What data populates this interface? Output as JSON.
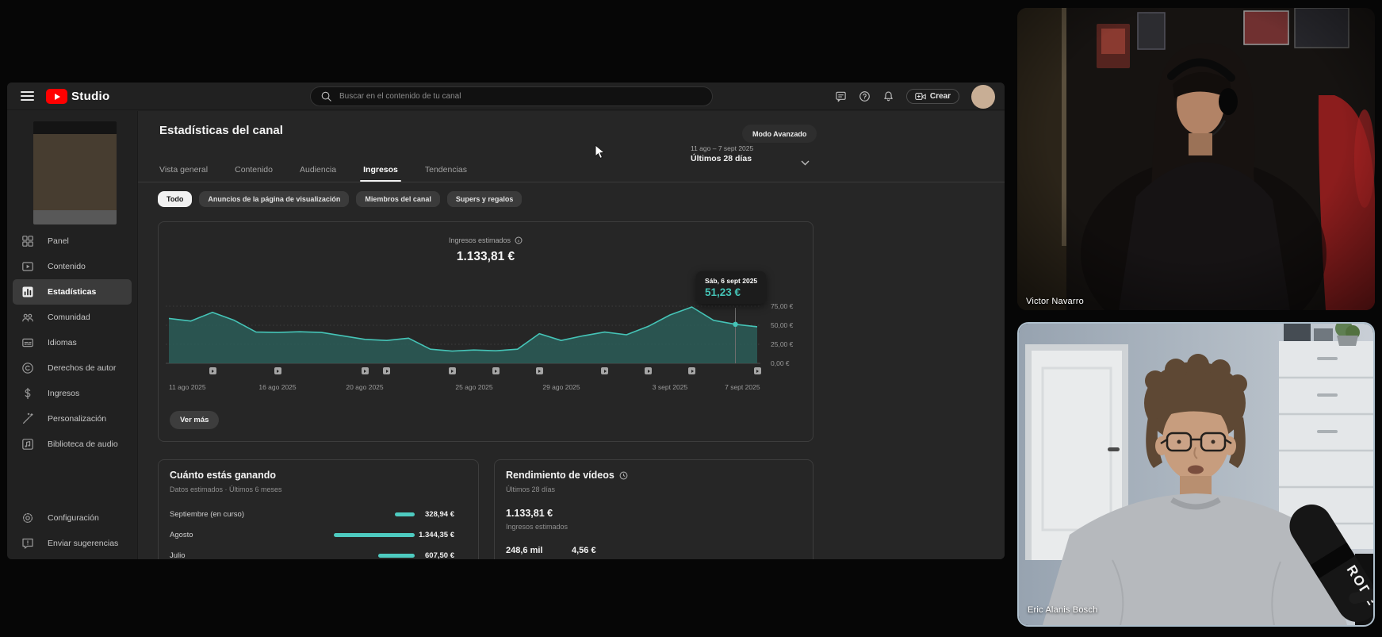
{
  "app": {
    "product": "Studio",
    "search_placeholder": "Buscar en el contenido de tu canal",
    "create_label": "Crear",
    "header_icons": [
      "menu-icon",
      "youtube-logo",
      "search-icon",
      "feedback-icon",
      "help-icon",
      "notifications-icon",
      "create-icon",
      "avatar"
    ]
  },
  "sidebar": {
    "items": [
      {
        "label": "Panel",
        "icon": "dashboard-icon",
        "active": false
      },
      {
        "label": "Contenido",
        "icon": "content-icon",
        "active": false
      },
      {
        "label": "Estadísticas",
        "icon": "analytics-icon",
        "active": true
      },
      {
        "label": "Comunidad",
        "icon": "community-icon",
        "active": false
      },
      {
        "label": "Idiomas",
        "icon": "languages-icon",
        "active": false
      },
      {
        "label": "Derechos de autor",
        "icon": "copyright-icon",
        "active": false
      },
      {
        "label": "Ingresos",
        "icon": "earn-icon",
        "active": false
      },
      {
        "label": "Personalización",
        "icon": "customization-icon",
        "active": false
      },
      {
        "label": "Biblioteca de audio",
        "icon": "audio-library-icon",
        "active": false
      }
    ],
    "footer_items": [
      {
        "label": "Configuración",
        "icon": "settings-icon"
      },
      {
        "label": "Enviar sugerencias",
        "icon": "send-feedback-icon"
      }
    ]
  },
  "page": {
    "title": "Estadísticas del canal",
    "tabs": [
      {
        "label": "Vista general",
        "active": false
      },
      {
        "label": "Contenido",
        "active": false
      },
      {
        "label": "Audiencia",
        "active": false
      },
      {
        "label": "Ingresos",
        "active": true
      },
      {
        "label": "Tendencias",
        "active": false
      }
    ],
    "filter_chips": [
      {
        "label": "Todo",
        "selected": true
      },
      {
        "label": "Anuncios de la página de visualización",
        "selected": false
      },
      {
        "label": "Miembros del canal",
        "selected": false
      },
      {
        "label": "Supers y regalos",
        "selected": false
      }
    ],
    "advanced_mode_label": "Modo Avanzado",
    "date_range": {
      "range": "11 ago – 7 sept 2025",
      "preset": "Últimos 28 días"
    }
  },
  "chart_card": {
    "metric_label": "Ingresos estimados",
    "metric_value": "1.133,81 €",
    "see_more_label": "Ver más"
  },
  "chart_data": {
    "type": "area",
    "title": "Ingresos estimados",
    "unit": "EUR",
    "x_dates": [
      "11 ago",
      "12 ago",
      "13 ago",
      "14 ago",
      "15 ago",
      "16 ago",
      "17 ago",
      "18 ago",
      "19 ago",
      "20 ago",
      "21 ago",
      "22 ago",
      "23 ago",
      "24 ago",
      "25 ago",
      "26 ago",
      "27 ago",
      "28 ago",
      "29 ago",
      "30 ago",
      "31 ago",
      "1 sept",
      "2 sept",
      "3 sept",
      "4 sept",
      "5 sept",
      "6 sept",
      "7 sept"
    ],
    "values": [
      59,
      55.5,
      67,
      56.5,
      41,
      40.5,
      41.5,
      40.5,
      36,
      31.5,
      30,
      33,
      18.5,
      16,
      17.5,
      16.5,
      18.5,
      39,
      30,
      36,
      41,
      37.5,
      48.5,
      63.5,
      74,
      56.5,
      51.23,
      48
    ],
    "ylim": [
      0,
      75
    ],
    "yticks": [
      "75,00 €",
      "50,00 €",
      "25,00 €",
      "0,00 €"
    ],
    "xticks": [
      {
        "label": "11 ago 2025",
        "day": 0
      },
      {
        "label": "16 ago 2025",
        "day": 5
      },
      {
        "label": "20 ago 2025",
        "day": 9
      },
      {
        "label": "25 ago 2025",
        "day": 14
      },
      {
        "label": "29 ago 2025",
        "day": 18
      },
      {
        "label": "3 sept 2025",
        "day": 23
      },
      {
        "label": "7 sept 2025",
        "day": 27
      }
    ],
    "video_marker_days": [
      2,
      5,
      9,
      10,
      13,
      15,
      17,
      20,
      22,
      24,
      27
    ],
    "highlight": {
      "index": 26,
      "date": "Sáb, 6 sept 2025",
      "value": 51.23,
      "display": "51,23 €"
    },
    "grid": true,
    "legend": false,
    "line_color": "#45c4b7",
    "fill_color": "#2b5a55"
  },
  "earnings_card": {
    "title": "Cuánto estás ganando",
    "subtitle": "Datos estimados · Últimos 6 meses",
    "rows": [
      {
        "label": "Septiembre (en curso)",
        "value": "328,94 €",
        "amount": 328.94
      },
      {
        "label": "Agosto",
        "value": "1.344,35 €",
        "amount": 1344.35
      },
      {
        "label": "Julio",
        "value": "607,50 €",
        "amount": 607.5
      }
    ],
    "max_amount": 1344.35,
    "bar_color": "#4ecbc0"
  },
  "performance_card": {
    "title": "Rendimiento de vídeos",
    "subtitle": "Últimos 28 días",
    "revenue": "1.133,81 €",
    "revenue_label": "Ingresos estimados",
    "stats": [
      {
        "value": "248,6 mil"
      },
      {
        "value": "4,56 €"
      }
    ]
  },
  "webcams": [
    {
      "name": "Victor Navarro"
    },
    {
      "name": "Eric Alanis Bosch"
    }
  ],
  "colors": {
    "accent_teal": "#45c4b7",
    "brand_red": "#ff0000",
    "chart_fill": "#2b5a55",
    "bar_teal": "#4ecbc0",
    "selected_chip": "#f1f1f1"
  }
}
